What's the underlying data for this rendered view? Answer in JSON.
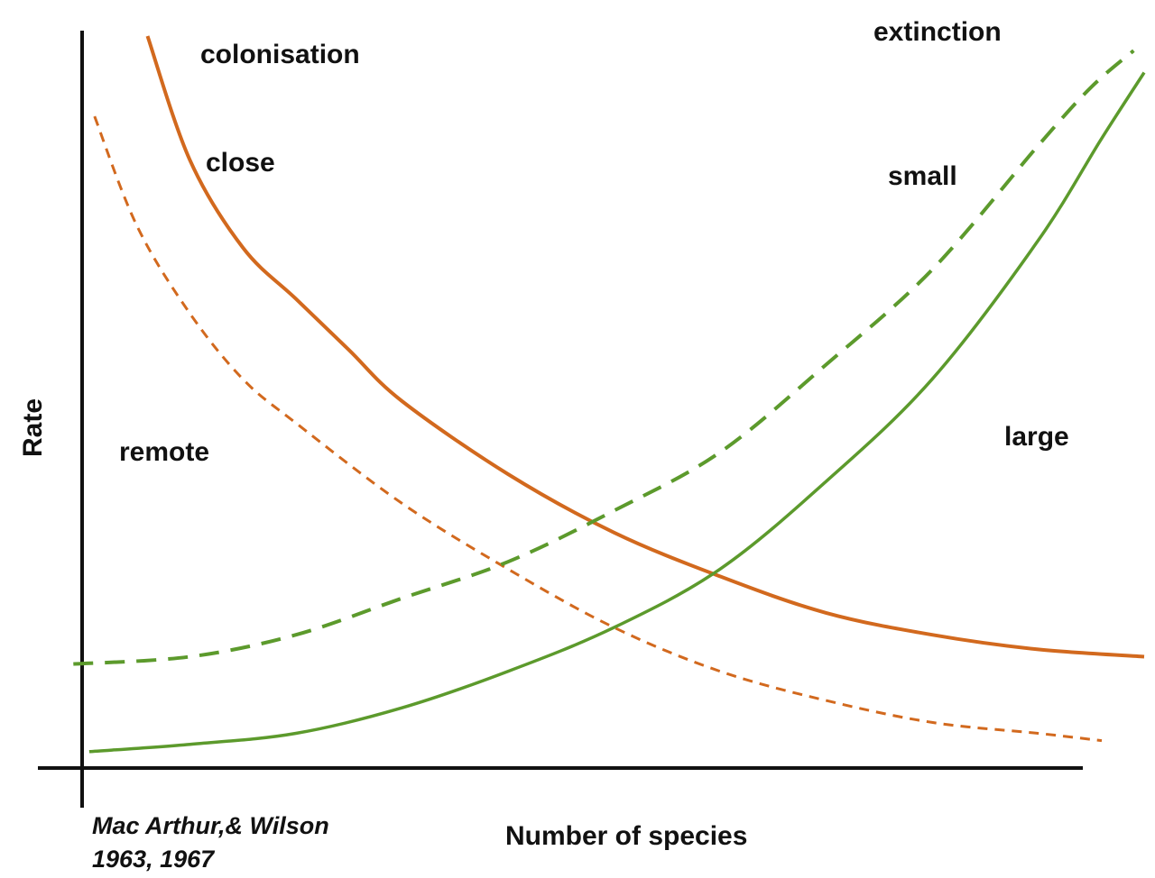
{
  "chart_data": {
    "type": "line",
    "title": "",
    "xlabel": "Number of species",
    "ylabel": "Rate",
    "xlim": [
      0,
      100
    ],
    "ylim": [
      0,
      100
    ],
    "grid": false,
    "legend": "none",
    "credit": [
      "Mac Arthur,& Wilson",
      "1963, 1967"
    ],
    "group_labels": {
      "colonisation": "colonisation",
      "extinction": "extinction"
    },
    "colors": {
      "colonisation": "#d2691e",
      "extinction": "#5c9a2c",
      "axis": "#111111"
    },
    "series": [
      {
        "name": "close",
        "group": "colonisation",
        "style": "solid",
        "color": "#d2691e",
        "points": [
          [
            6,
            100
          ],
          [
            10,
            83
          ],
          [
            15,
            71
          ],
          [
            20,
            64
          ],
          [
            25,
            57
          ],
          [
            30,
            50
          ],
          [
            40,
            40
          ],
          [
            50,
            32
          ],
          [
            60,
            26
          ],
          [
            70,
            21
          ],
          [
            80,
            18
          ],
          [
            90,
            16
          ],
          [
            100,
            15
          ]
        ]
      },
      {
        "name": "remote",
        "group": "colonisation",
        "style": "dashed",
        "color": "#d2691e",
        "points": [
          [
            1,
            89
          ],
          [
            5,
            74
          ],
          [
            10,
            62
          ],
          [
            15,
            53
          ],
          [
            20,
            47
          ],
          [
            30,
            36
          ],
          [
            40,
            27
          ],
          [
            50,
            19
          ],
          [
            60,
            13
          ],
          [
            70,
            9
          ],
          [
            80,
            6
          ],
          [
            90,
            4.5
          ],
          [
            96,
            3.5
          ]
        ]
      },
      {
        "name": "small",
        "group": "extinction",
        "style": "dashed",
        "color": "#5c9a2c",
        "points": [
          [
            -1,
            14
          ],
          [
            10,
            15
          ],
          [
            20,
            18
          ],
          [
            30,
            23
          ],
          [
            40,
            28
          ],
          [
            50,
            35
          ],
          [
            60,
            43
          ],
          [
            70,
            55
          ],
          [
            80,
            68
          ],
          [
            90,
            85
          ],
          [
            95,
            93
          ],
          [
            99,
            98
          ]
        ]
      },
      {
        "name": "large",
        "group": "extinction",
        "style": "solid",
        "color": "#5c9a2c",
        "points": [
          [
            0.5,
            2
          ],
          [
            10,
            3
          ],
          [
            20,
            4.5
          ],
          [
            30,
            8
          ],
          [
            40,
            13
          ],
          [
            50,
            19
          ],
          [
            60,
            27
          ],
          [
            70,
            39
          ],
          [
            80,
            53
          ],
          [
            90,
            72
          ],
          [
            96,
            86
          ],
          [
            100,
            95
          ]
        ]
      }
    ]
  }
}
